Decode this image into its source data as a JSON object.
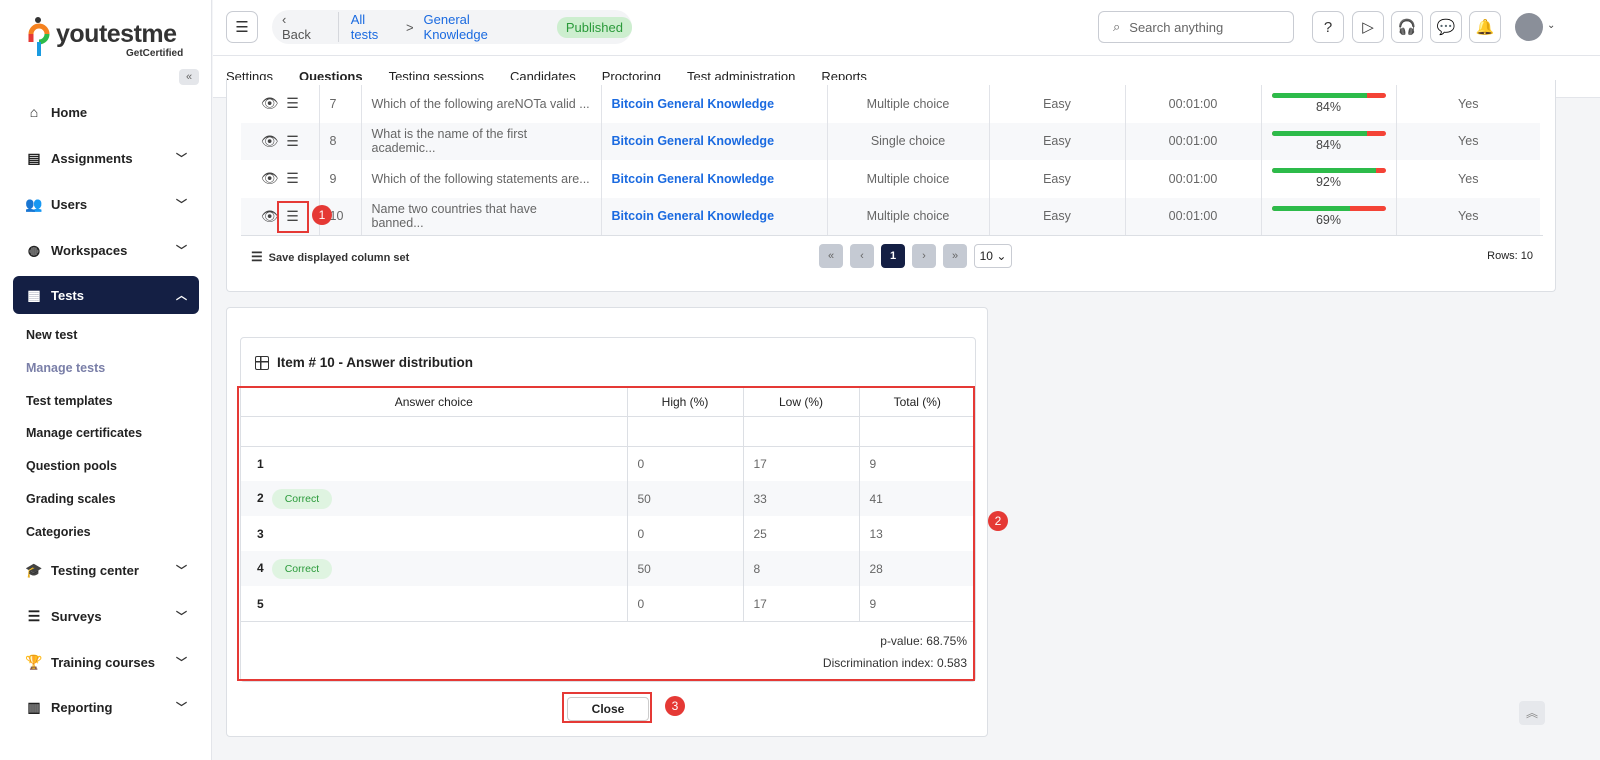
{
  "app": {
    "brand": "youtestme",
    "tagline": "GetCertified"
  },
  "sidebar": {
    "items": [
      {
        "label": "Home",
        "icon": "home-icon",
        "y": 112
      },
      {
        "label": "Assignments",
        "icon": "document-icon",
        "chev": true
      },
      {
        "label": "Users",
        "icon": "users-icon",
        "chev": true
      },
      {
        "label": "Workspaces",
        "icon": "globe-icon",
        "chev": true
      },
      {
        "label": "Tests",
        "icon": "test-icon",
        "chev": true,
        "active": true
      },
      {
        "label": "Testing center",
        "icon": "graduation-icon",
        "chev": true
      },
      {
        "label": "Surveys",
        "icon": "list-icon",
        "chev": true
      },
      {
        "label": "Training courses",
        "icon": "trophy-icon",
        "chev": true
      },
      {
        "label": "Reporting",
        "icon": "report-icon",
        "chev": true
      }
    ],
    "sub_items": [
      "New test",
      "Manage tests",
      "Test templates",
      "Manage certificates",
      "Question pools",
      "Grading scales",
      "Categories"
    ],
    "current_sub": "Manage tests"
  },
  "header": {
    "back": "Back",
    "crumb1": "All tests",
    "separator": ">",
    "crumb2": "General Knowledge",
    "status": "Published",
    "search_placeholder": "Search anything"
  },
  "tabs": [
    "Settings",
    "Questions",
    "Testing sessions",
    "Candidates",
    "Proctoring",
    "Test administration",
    "Reports"
  ],
  "active_tab": "Questions",
  "questions": [
    {
      "num": "7",
      "text": "Which of the following areNOTa valid ...",
      "pool": "Bitcoin General Knowledge",
      "type": "Multiple choice",
      "difficulty": "Easy",
      "time": "00:01:00",
      "success": 84,
      "success_label": "84%",
      "active": "Yes"
    },
    {
      "num": "8",
      "text": "What is the name of the first academic...",
      "pool": "Bitcoin General Knowledge",
      "type": "Single choice",
      "difficulty": "Easy",
      "time": "00:01:00",
      "success": 84,
      "success_label": "84%",
      "active": "Yes"
    },
    {
      "num": "9",
      "text": "Which of the following statements are...",
      "pool": "Bitcoin General Knowledge",
      "type": "Multiple choice",
      "difficulty": "Easy",
      "time": "00:01:00",
      "success": 92,
      "success_label": "92%",
      "active": "Yes"
    },
    {
      "num": "10",
      "text": "Name two countries that have banned...",
      "pool": "Bitcoin General Knowledge",
      "type": "Multiple choice",
      "difficulty": "Easy",
      "time": "00:01:00",
      "success": 69,
      "success_label": "69%",
      "active": "Yes"
    }
  ],
  "table_footer": {
    "save_columns": "Save displayed column set",
    "current_page": "1",
    "page_size": "10",
    "rows": "Rows: 10"
  },
  "distribution": {
    "title": "Item # 10 - Answer distribution",
    "headers": [
      "Answer choice",
      "High (%)",
      "Low (%)",
      "Total (%)"
    ],
    "rows": [
      {
        "choice": "1",
        "correct": false,
        "high": "0",
        "low": "17",
        "total": "9"
      },
      {
        "choice": "2",
        "correct": true,
        "high": "50",
        "low": "33",
        "total": "41"
      },
      {
        "choice": "3",
        "correct": false,
        "high": "0",
        "low": "25",
        "total": "13"
      },
      {
        "choice": "4",
        "correct": true,
        "high": "50",
        "low": "8",
        "total": "28"
      },
      {
        "choice": "5",
        "correct": false,
        "high": "0",
        "low": "17",
        "total": "9"
      }
    ],
    "correct_label": "Correct",
    "p_value": "p-value: 68.75%",
    "discrimination": "Discrimination index: 0.583",
    "close": "Close"
  },
  "annotations": [
    "1",
    "2",
    "3"
  ],
  "colors": {
    "nav_active": "#141f44",
    "link": "#1a6ae0",
    "annotation": "#e53935",
    "bar_good": "#2dbb4a",
    "bar_bad": "#f44336"
  }
}
